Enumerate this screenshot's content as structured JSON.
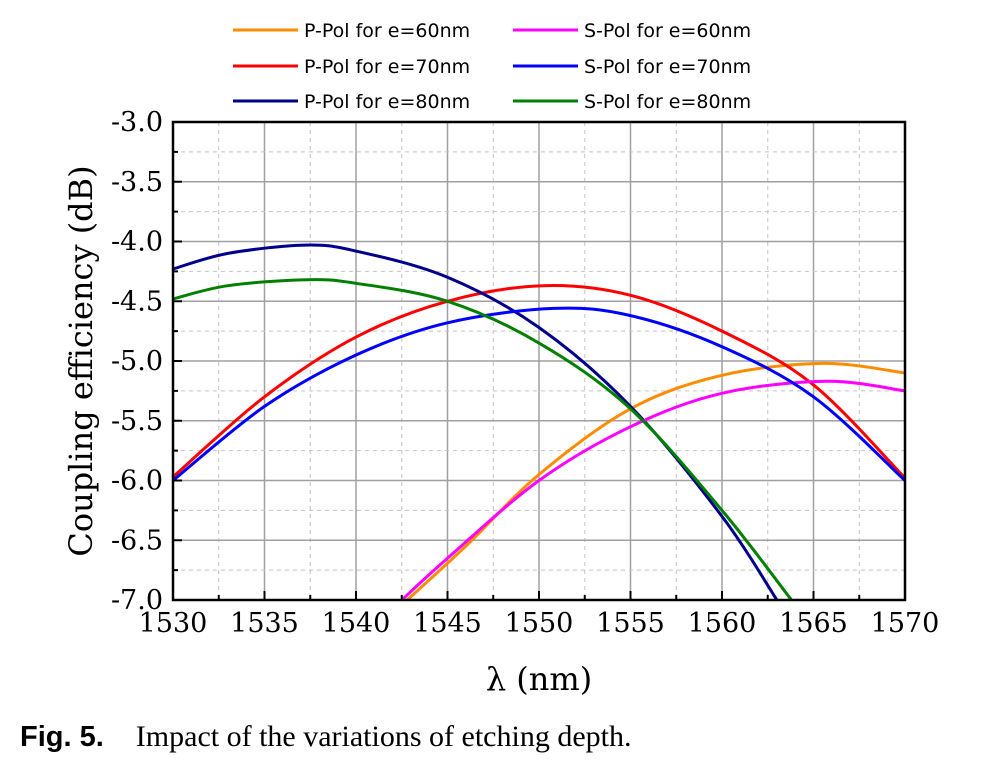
{
  "chart_data": {
    "type": "line",
    "xlabel": "λ (nm)",
    "ylabel": "Coupling efficiency (dB)",
    "xlim": [
      1530,
      1570
    ],
    "ylim": [
      -7.0,
      -3.0
    ],
    "x_ticks": [
      1530,
      1535,
      1540,
      1545,
      1550,
      1555,
      1560,
      1565,
      1570
    ],
    "y_ticks": [
      "-3.0",
      "-3.5",
      "-4.0",
      "-4.5",
      "-5.0",
      "-5.5",
      "-6.0",
      "-6.5",
      "-7.0"
    ],
    "grid": true,
    "legend_position": "top",
    "series": [
      {
        "name": "P-Pol for e=60nm",
        "color": "#ff8c00",
        "peak_x": 1565.5,
        "peak_y": -5.02,
        "x": [
          1542.8,
          1546,
          1550,
          1555,
          1560,
          1565.5,
          1570
        ],
        "y": [
          -7.0,
          -6.55,
          -5.95,
          -5.4,
          -5.12,
          -5.02,
          -5.1
        ]
      },
      {
        "name": "P-Pol for e=70nm",
        "color": "#ff0000",
        "peak_x": 1550.2,
        "peak_y": -4.37,
        "x": [
          1530,
          1535,
          1540,
          1545,
          1550.2,
          1555,
          1560,
          1565,
          1570
        ],
        "y": [
          -5.97,
          -5.3,
          -4.8,
          -4.5,
          -4.37,
          -4.45,
          -4.75,
          -5.2,
          -5.98
        ]
      },
      {
        "name": "P-Pol for e=80nm",
        "color": "#00008b",
        "peak_x": 1537.2,
        "peak_y": -4.03,
        "x": [
          1530,
          1533,
          1537.2,
          1540,
          1545,
          1550,
          1555,
          1560,
          1563
        ],
        "y": [
          -4.23,
          -4.1,
          -4.03,
          -4.08,
          -4.3,
          -4.72,
          -5.38,
          -6.3,
          -7.0
        ]
      },
      {
        "name": "S-Pol for e=60nm",
        "color": "#ff00ff",
        "peak_x": 1565.7,
        "peak_y": -5.17,
        "x": [
          1542.5,
          1545,
          1550,
          1555,
          1560,
          1565.7,
          1570
        ],
        "y": [
          -7.0,
          -6.65,
          -6.0,
          -5.55,
          -5.27,
          -5.17,
          -5.25
        ]
      },
      {
        "name": "S-Pol for e=70nm",
        "color": "#0000ff",
        "peak_x": 1550.8,
        "peak_y": -4.56,
        "x": [
          1530,
          1535,
          1540,
          1545,
          1550.8,
          1555,
          1560,
          1565,
          1570
        ],
        "y": [
          -6.0,
          -5.38,
          -4.95,
          -4.68,
          -4.56,
          -4.62,
          -4.88,
          -5.3,
          -6.0
        ]
      },
      {
        "name": "S-Pol for e=80nm",
        "color": "#008000",
        "peak_x": 1537.3,
        "peak_y": -4.32,
        "x": [
          1530,
          1533,
          1537.3,
          1540,
          1545,
          1550,
          1555,
          1560,
          1563.8
        ],
        "y": [
          -4.48,
          -4.37,
          -4.32,
          -4.35,
          -4.5,
          -4.85,
          -5.4,
          -6.25,
          -7.0
        ]
      }
    ]
  },
  "caption": {
    "label": "Fig. 5.",
    "text": "Impact of the variations of etching depth."
  }
}
